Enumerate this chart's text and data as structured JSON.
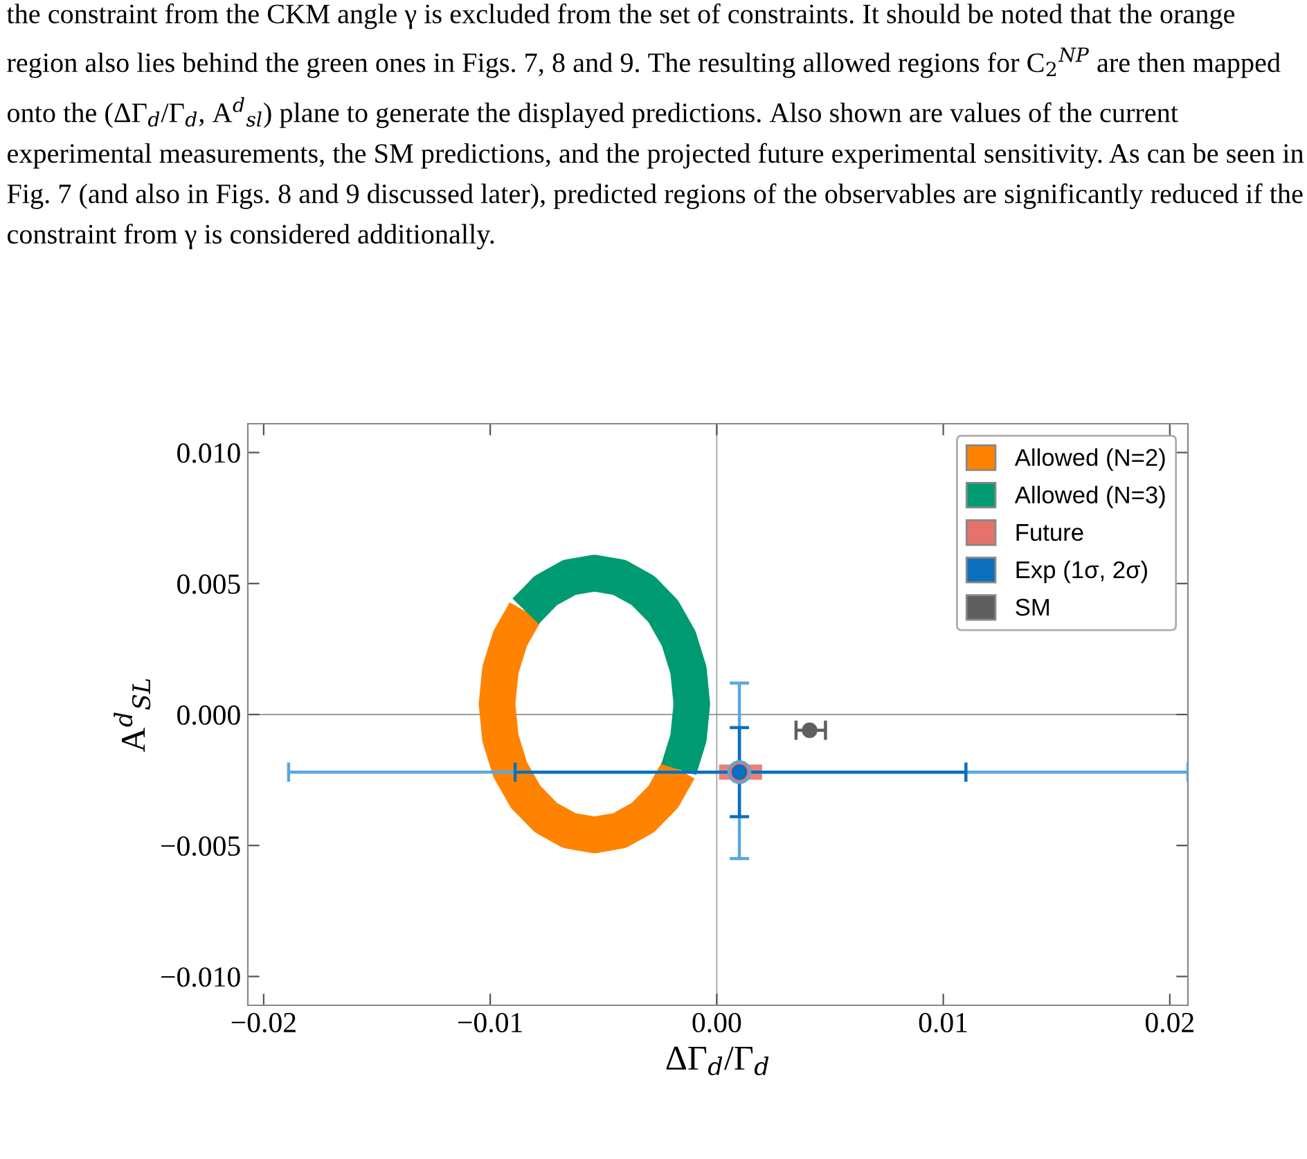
{
  "chart_data": {
    "type": "scatter",
    "annotations": [
      "the constraint from the CKM angle γ is excluded from the set of constraints. It should be noted that the orange region also lies behind the green ones in Figs. 7, 8 and 9. The resulting allowed regions for C$_{2}$$^{NP}$ are then mapped onto the (ΔΓ$_{d}$/Γ$_{d}$, A$^{d}$$_{sl}$) plane to generate the displayed predictions. Also shown are values of the current experimental measurements, the SM predictions, and the projected future experimental sensitivity. As can be seen in Fig. 7 (and also in Figs. 8 and 9 discussed later), predicted regions of the observables are significantly reduced if the constraint from γ is considered additionally."
    ],
    "xlabel": "ΔΓ$_{d}$/Γ$_{d}$",
    "ylabel": "A$^{d}$$_{SL}$",
    "xlim": [
      -0.0207,
      0.0208
    ],
    "ylim": [
      -0.0111,
      0.0111
    ],
    "xticks": [
      {
        "value": -0.02,
        "label": "−0.02"
      },
      {
        "value": -0.01,
        "label": "−0.01"
      },
      {
        "value": 0.0,
        "label": "0.00"
      },
      {
        "value": 0.01,
        "label": "0.01"
      },
      {
        "value": 0.02,
        "label": "0.02"
      }
    ],
    "yticks": [
      {
        "value": -0.01,
        "label": "−0.010"
      },
      {
        "value": -0.005,
        "label": "−0.005"
      },
      {
        "value": 0.0,
        "label": "0.000"
      },
      {
        "value": 0.005,
        "label": "0.005"
      },
      {
        "value": 0.01,
        "label": "0.010"
      }
    ],
    "ref_lines": [
      {
        "axis": "x",
        "value": 0,
        "color": "#9a9a9a"
      },
      {
        "axis": "y",
        "value": 0,
        "color": "#7a7a7a"
      }
    ],
    "legend": "top right",
    "grid": false,
    "series": [
      {
        "name": "Allowed (N=2)",
        "type": "line",
        "color": "#ff8300",
        "x": [
          -0.00168,
          -0.00236,
          -0.00325,
          -0.00429,
          -0.0054,
          -0.00651,
          -0.00755,
          -0.00844,
          -0.00912,
          -0.00955,
          -0.0097,
          -0.00955,
          -0.00912,
          -0.00844
        ],
        "values": [
          -0.0021,
          -0.00314,
          -0.00393,
          -0.00443,
          -0.0046,
          -0.00443,
          -0.00393,
          -0.00314,
          -0.0021,
          -0.0009,
          0.0004,
          0.0017,
          0.0029,
          0.00394
        ]
      },
      {
        "name": "Allowed (N=3)",
        "type": "line",
        "color": "#009b72",
        "x": [
          -0.00844,
          -0.00755,
          -0.00651,
          -0.0054,
          -0.00429,
          -0.00325,
          -0.00236,
          -0.00168,
          -0.00125,
          -0.0011,
          -0.00125,
          -0.00168
        ],
        "values": [
          0.00394,
          0.00473,
          0.00523,
          0.0054,
          0.00523,
          0.00473,
          0.00394,
          0.0029,
          0.0017,
          0.0004,
          -0.0009,
          -0.0021
        ]
      },
      {
        "color": "#58a8de",
        "marker": "circle",
        "x": [
          0.001
        ],
        "values": [
          -0.0022
        ],
        "errors": [
          [
            -0.0055,
            0.0012
          ]
        ],
        "xerrors": [
          [
            -0.0189,
            0.0208
          ]
        ]
      },
      {
        "name": "Future",
        "color": "#e5736c",
        "marker": "circle",
        "x": [
          0.001
        ],
        "values": [
          -0.0022
        ],
        "xerrors": [
          [
            0.0001,
            0.002
          ]
        ]
      },
      {
        "name": "Exp (1σ, 2σ)",
        "color": "#0b6fbd",
        "marker": "circle",
        "x": [
          0.001
        ],
        "values": [
          -0.0022
        ],
        "errors": [
          [
            -0.0039,
            -0.0005
          ]
        ],
        "xerrors": [
          [
            -0.0089,
            0.011
          ]
        ]
      },
      {
        "name": "SM",
        "color": "#5e5e5e",
        "marker": "circle",
        "x": [
          0.0041
        ],
        "values": [
          -0.0006
        ],
        "xerrors": [
          [
            0.0035,
            0.0048
          ]
        ]
      }
    ]
  }
}
